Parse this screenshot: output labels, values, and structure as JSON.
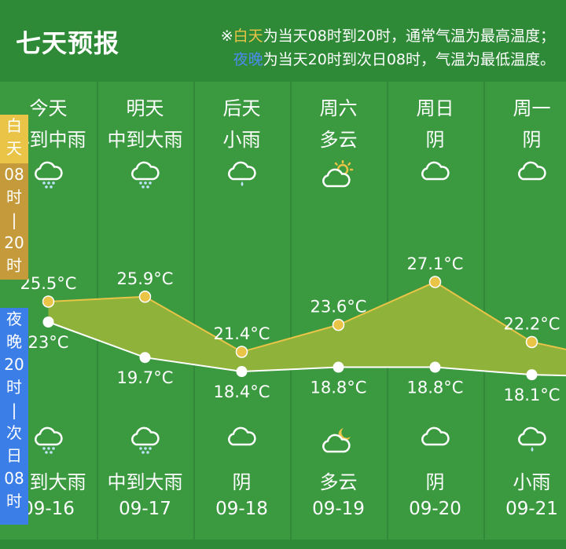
{
  "header": {
    "title": "七天预报",
    "note_line1_prefix": "※",
    "note_line1_key": "白天",
    "note_line1_rest": "为当天08时到20时，通常气温为最高温度；",
    "note_line2_key": "夜晚",
    "note_line2_rest": "为当天20时到次日08时，气温为最低温度。"
  },
  "side": {
    "day_label": [
      "白",
      "天"
    ],
    "day_time": [
      "08",
      "时",
      "|",
      "20",
      "时"
    ],
    "night_label": [
      "夜",
      "晚"
    ],
    "night_time": [
      "20",
      "时",
      "|",
      "次",
      "日",
      "08",
      "时"
    ]
  },
  "days": [
    {
      "weekday": "今天",
      "day_weather": "小到中雨",
      "day_icon": "rain-sleet-icon",
      "night_weather": "中到大雨",
      "night_icon": "rain-sleet-icon",
      "date": "09-16",
      "high": "25.5°C",
      "low": "23°C"
    },
    {
      "weekday": "明天",
      "day_weather": "中到大雨",
      "day_icon": "heavy-rain-icon",
      "night_weather": "中到大雨",
      "night_icon": "heavy-rain-icon",
      "date": "09-17",
      "high": "25.9°C",
      "low": "19.7°C"
    },
    {
      "weekday": "后天",
      "day_weather": "小雨",
      "day_icon": "light-rain-icon",
      "night_weather": "阴",
      "night_icon": "cloud-icon",
      "date": "09-18",
      "high": "21.4°C",
      "low": "18.4°C"
    },
    {
      "weekday": "周六",
      "day_weather": "多云",
      "day_icon": "sun-cloud-icon",
      "night_weather": "多云",
      "night_icon": "moon-cloud-icon",
      "date": "09-19",
      "high": "23.6°C",
      "low": "18.8°C"
    },
    {
      "weekday": "周日",
      "day_weather": "阴",
      "day_icon": "cloud-icon",
      "night_weather": "阴",
      "night_icon": "cloud-icon",
      "date": "09-20",
      "high": "27.1°C",
      "low": "18.8°C"
    },
    {
      "weekday": "周一",
      "day_weather": "阴",
      "day_icon": "cloud-icon",
      "night_weather": "小雨",
      "night_icon": "light-rain-icon",
      "date": "09-21",
      "high": "22.2°C",
      "low": "18.1°C"
    }
  ],
  "chart_data": {
    "type": "line",
    "categories": [
      "09-16",
      "09-17",
      "09-18",
      "09-19",
      "09-20",
      "09-21"
    ],
    "series": [
      {
        "name": "白天",
        "values": [
          25.5,
          25.9,
          21.4,
          23.6,
          27.1,
          22.2
        ],
        "color": "#e9c447"
      },
      {
        "name": "夜晚",
        "values": [
          23,
          19.7,
          18.4,
          18.8,
          18.8,
          18.1
        ],
        "color": "#ffffff"
      }
    ],
    "fill_color": "#8fb33a"
  }
}
